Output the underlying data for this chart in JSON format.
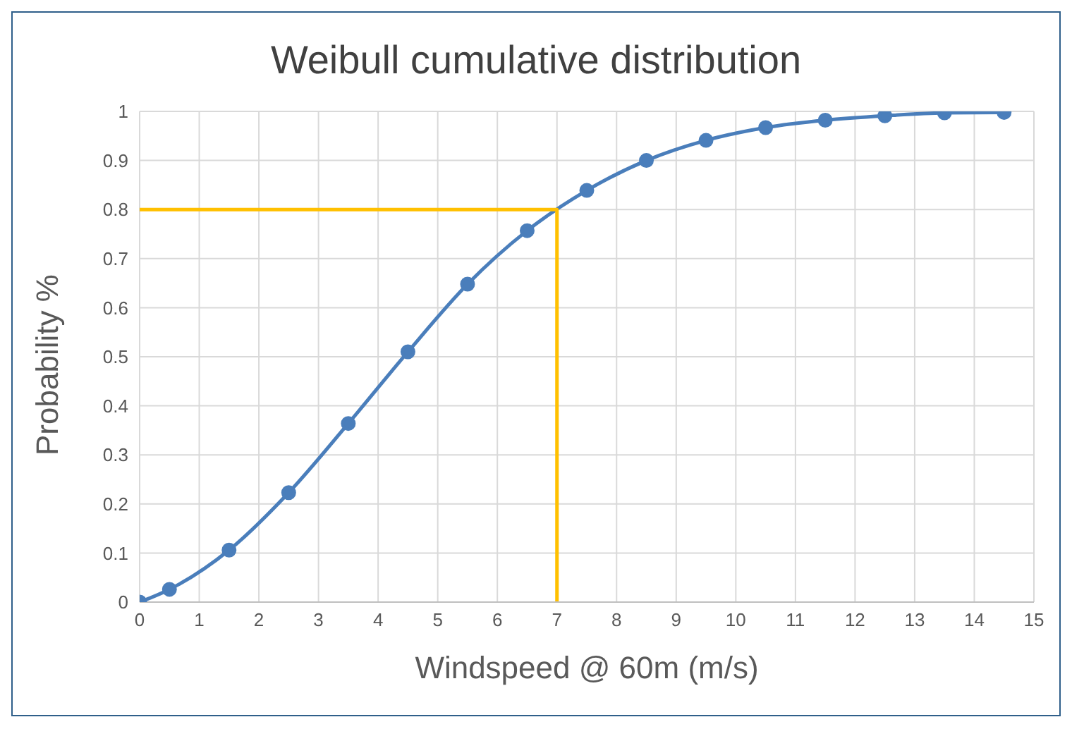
{
  "chart_data": {
    "type": "line",
    "title": "Weibull cumulative distribution",
    "xlabel": "Windspeed @ 60m (m/s)",
    "ylabel": "Probability %",
    "xlim": [
      0,
      15
    ],
    "xticks": [
      0,
      1,
      2,
      3,
      4,
      5,
      6,
      7,
      8,
      9,
      10,
      11,
      12,
      13,
      14,
      15
    ],
    "ylim": [
      0,
      1
    ],
    "yticks": [
      0,
      0.1,
      0.2,
      0.3,
      0.4,
      0.5,
      0.6,
      0.7,
      0.8,
      0.9,
      1
    ],
    "grid": true,
    "legend": false,
    "series": [
      {
        "color": "#4a7ebb",
        "marker": "circle",
        "x": [
          0,
          0.5,
          1.5,
          2.5,
          3.5,
          4.5,
          5.5,
          6.5,
          7.5,
          8.5,
          9.5,
          10.5,
          11.5,
          12.5,
          13.5,
          14.5
        ],
        "values": [
          0,
          0.026,
          0.106,
          0.223,
          0.364,
          0.51,
          0.648,
          0.757,
          0.839,
          0.9,
          0.941,
          0.967,
          0.982,
          0.991,
          0.997,
          0.998
        ]
      },
      {
        "color": "#ffc000",
        "marker": "none",
        "x": [
          0,
          7,
          7
        ],
        "values": [
          0.8,
          0.8,
          0
        ]
      }
    ]
  }
}
